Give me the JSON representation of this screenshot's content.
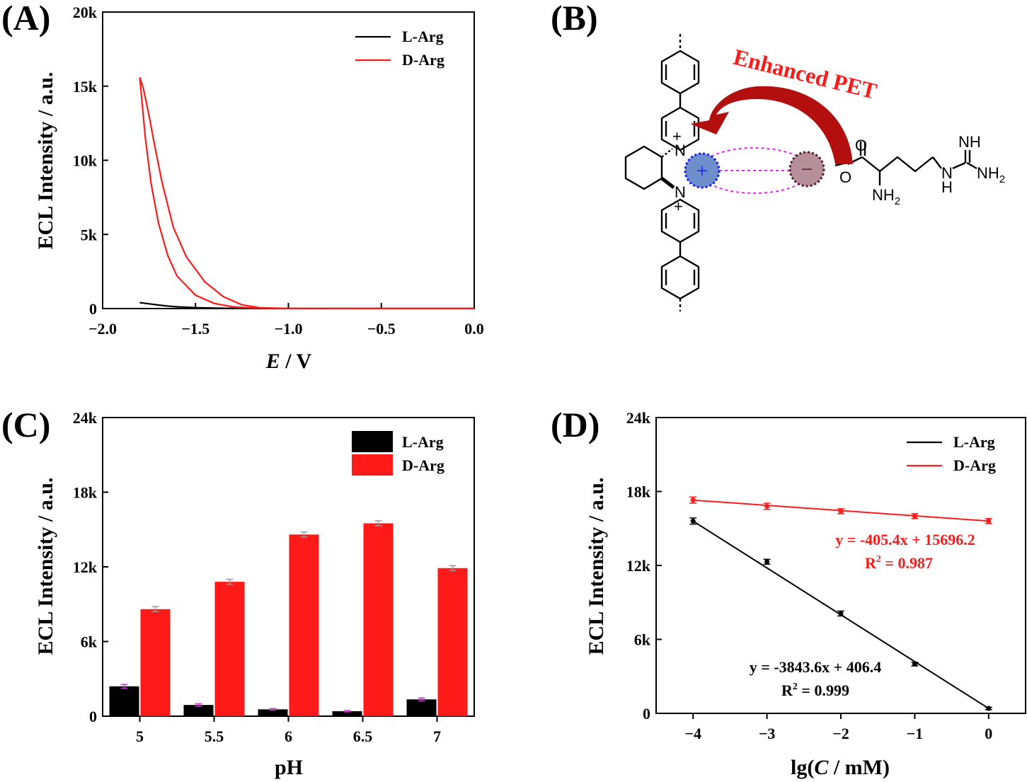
{
  "panels": {
    "A": {
      "label": "(A)"
    },
    "B": {
      "label": "(B)",
      "arrow_text": "Enhanced PET",
      "plus_sign": "+",
      "minus_sign": "−",
      "atoms": {
        "n_top": "N",
        "n_top_charge": "+",
        "n_bottom": "N",
        "n_bottom_charge": "+",
        "carbonyl_o": "O",
        "carboxylate_o": "O",
        "imine": "NH",
        "amine": "NH",
        "amine_h": "2",
        "amine_h_only": "H",
        "guanidine_n": "N",
        "guanidine_nh2": "NH",
        "guanidine_h": "2"
      }
    },
    "C": {
      "label": "(C)"
    },
    "D": {
      "label": "(D)",
      "eq_red": "y = -405.4x + 15696.2",
      "r2_red_prefix": "R",
      "r2_red_sup": "2",
      "r2_red_value": " = 0.987",
      "eq_black": "y = -3843.6x + 406.4",
      "r2_black_prefix": "R",
      "r2_black_sup": "2",
      "r2_black_value": " = 0.999"
    }
  },
  "colors": {
    "L_Arg": "#000000",
    "D_Arg": "#ff1a1a",
    "arrow": "#b30f0f",
    "plus_circle": "#6f8fcc",
    "minus_circle": "#b58f9a",
    "dotted": "#ee22ee"
  },
  "chart_data": [
    {
      "id": "A",
      "type": "line",
      "xlabel_italic": "E",
      "xlabel_rest": " / V",
      "ylabel": "ECL Intensity / a.u.",
      "xlim": [
        -2.0,
        0.0
      ],
      "ylim": [
        0,
        20000
      ],
      "xticks": [
        -2.0,
        -1.5,
        -1.0,
        -0.5,
        0.0
      ],
      "xtick_labels": [
        "−2.0",
        "−1.5",
        "−1.0",
        "−0.5",
        "0.0"
      ],
      "yticks": [
        0,
        5000,
        10000,
        15000,
        20000
      ],
      "ytick_labels": [
        "0",
        "5k",
        "10k",
        "15k",
        "20k"
      ],
      "legend": [
        "L-Arg",
        "D-Arg"
      ],
      "legend_position": "top-right",
      "series": [
        {
          "name": "L-Arg",
          "x": [
            -1.8,
            -1.75,
            -1.7,
            -1.65,
            -1.6,
            -1.5,
            -1.4,
            -1.3,
            -1.2,
            -1.0,
            -0.5,
            0.0
          ],
          "y": [
            400,
            320,
            240,
            170,
            120,
            60,
            30,
            15,
            8,
            5,
            5,
            5
          ]
        },
        {
          "name": "D-Arg",
          "x": [
            0.0,
            -0.5,
            -1.0,
            -1.15,
            -1.25,
            -1.35,
            -1.45,
            -1.55,
            -1.62,
            -1.68,
            -1.72,
            -1.75,
            -1.78,
            -1.8,
            -1.79,
            -1.77,
            -1.74,
            -1.7,
            -1.65,
            -1.6,
            -1.5,
            -1.4,
            -1.3,
            -1.2,
            -1.1,
            -1.0,
            -0.5,
            0.0
          ],
          "y": [
            5,
            5,
            10,
            50,
            250,
            800,
            1800,
            3500,
            5500,
            8500,
            11000,
            13000,
            14800,
            15600,
            14200,
            11500,
            8500,
            5800,
            3600,
            2200,
            900,
            350,
            120,
            40,
            15,
            8,
            5,
            5
          ]
        }
      ]
    },
    {
      "id": "C",
      "type": "bar",
      "xlabel": "pH",
      "ylabel": "ECL Intensity / a.u.",
      "categories": [
        "5",
        "5.5",
        "6",
        "6.5",
        "7"
      ],
      "ylim": [
        0,
        24000
      ],
      "yticks": [
        0,
        6000,
        12000,
        18000,
        24000
      ],
      "ytick_labels": [
        "0",
        "6k",
        "12k",
        "18k",
        "24k"
      ],
      "legend": [
        "L-Arg",
        "D-Arg"
      ],
      "legend_position": "top-right",
      "series": [
        {
          "name": "L-Arg",
          "values": [
            2400,
            900,
            550,
            400,
            1350
          ],
          "errors": [
            150,
            100,
            60,
            50,
            120
          ]
        },
        {
          "name": "D-Arg",
          "values": [
            8600,
            10800,
            14600,
            15500,
            11900
          ],
          "errors": [
            200,
            200,
            200,
            200,
            200
          ]
        }
      ]
    },
    {
      "id": "D",
      "type": "scatter",
      "xlabel_prefix": "lg(",
      "xlabel_italic": "C",
      "xlabel_rest": " / mM)",
      "ylabel": "ECL Intensity / a.u.",
      "xlim": [
        -4.5,
        0.5
      ],
      "ylim": [
        0,
        24000
      ],
      "xticks": [
        -4,
        -3,
        -2,
        -1,
        0
      ],
      "xtick_labels": [
        "−4",
        "−3",
        "−2",
        "−1",
        "0"
      ],
      "yticks": [
        0,
        6000,
        12000,
        18000,
        24000
      ],
      "ytick_labels": [
        "0",
        "6k",
        "12k",
        "18k",
        "24k"
      ],
      "legend": [
        "L-Arg",
        "D-Arg"
      ],
      "legend_position": "top-right",
      "series": [
        {
          "name": "L-Arg",
          "x": [
            -4,
            -3,
            -2,
            -1,
            0
          ],
          "y": [
            15600,
            12300,
            8100,
            4000,
            400
          ],
          "errors": [
            250,
            200,
            200,
            150,
            100
          ],
          "fit": {
            "slope": -3843.6,
            "intercept": 406.4
          }
        },
        {
          "name": "D-Arg",
          "x": [
            -4,
            -3,
            -2,
            -1,
            0
          ],
          "y": [
            17300,
            16800,
            16400,
            16000,
            15600
          ],
          "errors": [
            250,
            250,
            200,
            200,
            200
          ],
          "fit": {
            "slope": -405.4,
            "intercept": 15696.2
          }
        }
      ]
    }
  ]
}
